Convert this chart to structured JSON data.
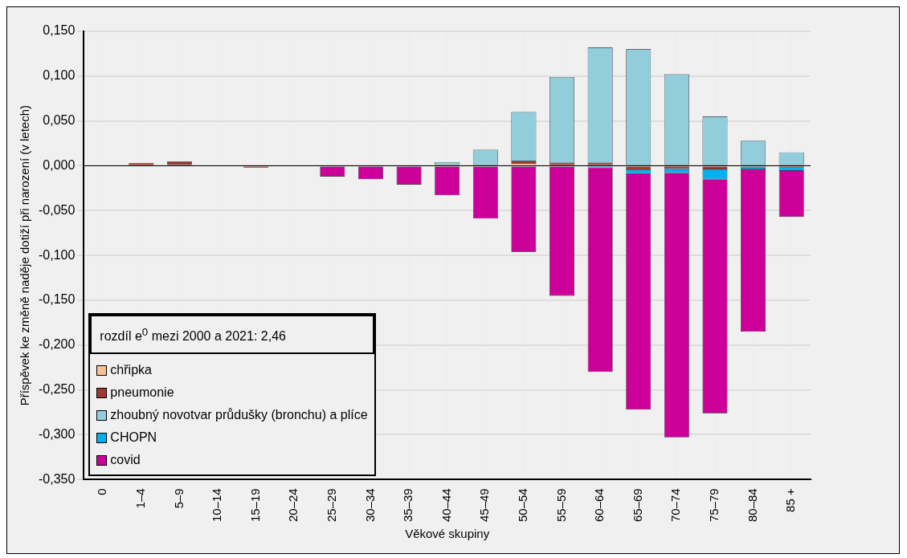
{
  "chart_data": {
    "type": "bar",
    "stacked": true,
    "xlabel": "Věkové skupiny",
    "ylabel": "Příspěvek ke změně naděje dotiží při narození (v letech)",
    "categories": [
      "0",
      "1–4",
      "5–9",
      "10–14",
      "15–19",
      "20–24",
      "25–29",
      "30–34",
      "35–39",
      "40–44",
      "45–49",
      "50–54",
      "55–59",
      "60–64",
      "65–69",
      "70–74",
      "75–79",
      "80–84",
      "85 +"
    ],
    "series": [
      {
        "name": "chřipka",
        "color": "#fac090",
        "values": [
          null,
          null,
          null,
          null,
          null,
          null,
          null,
          null,
          null,
          null,
          null,
          0.002,
          null,
          null,
          null,
          null,
          null,
          null,
          null
        ]
      },
      {
        "name": "pneumonie",
        "color": "#9c3b32",
        "values": [
          null,
          0.003,
          0.005,
          null,
          -0.002,
          null,
          null,
          null,
          null,
          null,
          null,
          0.003,
          0.003,
          0.003,
          -0.005,
          -0.003,
          -0.004,
          null,
          -0.002
        ]
      },
      {
        "name": "zhoubný novotvar průdušky (bronchu) a plíce",
        "color": "#92cddc",
        "values": [
          null,
          null,
          null,
          null,
          null,
          null,
          null,
          null,
          null,
          0.004,
          0.018,
          0.055,
          0.096,
          0.129,
          0.13,
          0.102,
          0.055,
          0.028,
          0.015
        ]
      },
      {
        "name": "CHOPN",
        "color": "#00b0f0",
        "values": [
          null,
          null,
          null,
          null,
          null,
          null,
          null,
          null,
          null,
          null,
          null,
          null,
          null,
          -0.002,
          -0.003,
          -0.005,
          -0.011,
          -0.004,
          -0.003
        ]
      },
      {
        "name": "covid",
        "color": "#cc0099",
        "values": [
          null,
          null,
          null,
          null,
          null,
          null,
          -0.012,
          -0.015,
          -0.021,
          -0.033,
          -0.059,
          -0.096,
          -0.145,
          -0.228,
          -0.264,
          -0.295,
          -0.261,
          -0.181,
          -0.052
        ]
      }
    ],
    "ylim": [
      -0.35,
      0.15
    ],
    "yticks": [
      {
        "value": -0.35,
        "label": "-0,350"
      },
      {
        "value": -0.3,
        "label": "-0,300"
      },
      {
        "value": -0.25,
        "label": "-0,250"
      },
      {
        "value": -0.2,
        "label": "-0,200"
      },
      {
        "value": -0.15,
        "label": "-0,150"
      },
      {
        "value": -0.1,
        "label": "-0,100"
      },
      {
        "value": -0.05,
        "label": "-0,050"
      },
      {
        "value": 0,
        "label": "0,000"
      },
      {
        "value": 0.05,
        "label": "0,050"
      },
      {
        "value": 0.1,
        "label": "0,100"
      },
      {
        "value": 0.15,
        "label": "0,150"
      }
    ],
    "grid": true,
    "legend": "bottom left",
    "annotations": [
      "rozdíl e$^{0}$ mezi 2000 a 2021: 2,46"
    ]
  }
}
